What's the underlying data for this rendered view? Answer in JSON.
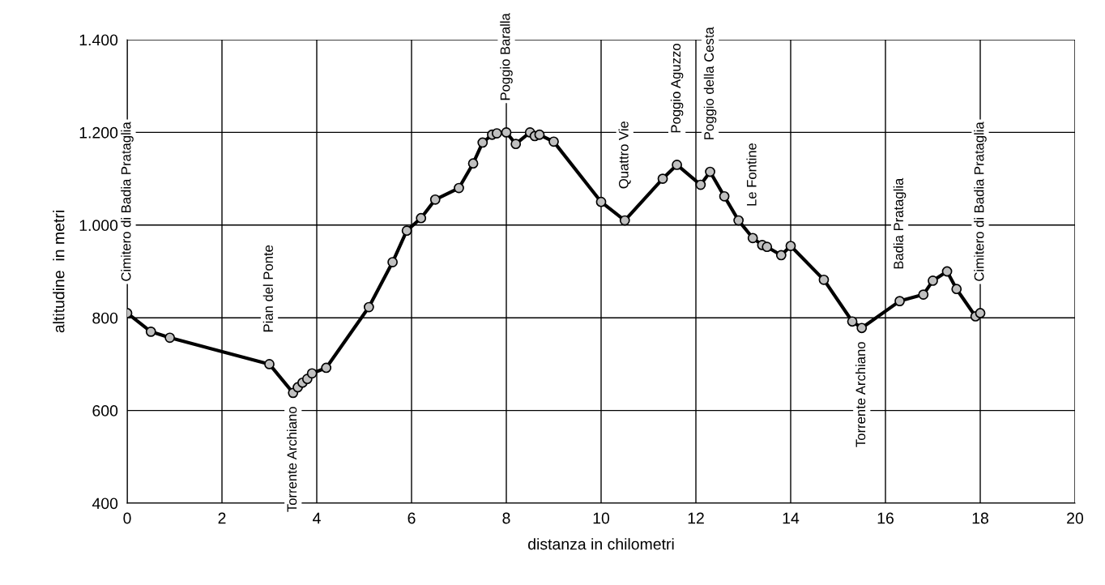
{
  "chart_data": {
    "type": "line",
    "xlabel": "distanza in chilometri",
    "ylabel": "altitudine  in metri",
    "x": [
      0,
      0.5,
      0.9,
      3,
      3.5,
      3.6,
      3.7,
      3.8,
      3.9,
      4.2,
      5.1,
      5.6,
      5.9,
      6.2,
      6.5,
      7,
      7.3,
      7.5,
      7.7,
      7.8,
      8,
      8.2,
      8.5,
      8.6,
      8.7,
      9,
      10,
      10.5,
      11.3,
      11.6,
      12.1,
      12.3,
      12.6,
      12.9,
      13.2,
      13.4,
      13.5,
      13.8,
      14,
      14.7,
      15.3,
      15.5,
      16.3,
      16.8,
      17,
      17.3,
      17.5,
      17.9,
      18
    ],
    "series": [
      {
        "color": "#000000",
        "values": [
          810,
          770,
          757,
          700,
          638,
          650,
          660,
          668,
          680,
          692,
          823,
          920,
          988,
          1015,
          1055,
          1080,
          1133,
          1178,
          1195,
          1198,
          1200,
          1175,
          1200,
          1192,
          1195,
          1180,
          1050,
          1010,
          1100,
          1130,
          1087,
          1115,
          1062,
          1010,
          972,
          957,
          953,
          935,
          955,
          882,
          792,
          778,
          836,
          850,
          880,
          900,
          862,
          803,
          810
        ]
      }
    ],
    "marker": "circle",
    "line_style": "solid",
    "grid": true,
    "legend": false,
    "xlim": [
      0,
      20
    ],
    "xticks": [
      0,
      2,
      4,
      6,
      8,
      10,
      12,
      14,
      16,
      18,
      20
    ],
    "ylim": [
      400,
      1400
    ],
    "yticks": [
      {
        "value": 400,
        "label": "400"
      },
      {
        "value": 600,
        "label": "600"
      },
      {
        "value": 800,
        "label": "800"
      },
      {
        "value": 1000,
        "label": "1.000"
      },
      {
        "value": 1200,
        "label": "1.200"
      },
      {
        "value": 1400,
        "label": "1.400"
      }
    ],
    "annotations": [
      {
        "text": "Cimitero di Badia Prataglia",
        "x": 0,
        "y": 810
      },
      {
        "text": "Pian del Ponte",
        "x": 3,
        "y": 700
      },
      {
        "text": "Torrente Archiano",
        "x": 3.5,
        "y": 638
      },
      {
        "text": "Poggio Baralla",
        "x": 8,
        "y": 1200
      },
      {
        "text": "Quattro Vie",
        "x": 10.5,
        "y": 1010
      },
      {
        "text": "Poggio Aguzzo",
        "x": 11.6,
        "y": 1130
      },
      {
        "text": "Poggio della Cesta",
        "x": 12.3,
        "y": 1115
      },
      {
        "text": "Le Fontine",
        "x": 13.2,
        "y": 972
      },
      {
        "text": "Torrente Archiano",
        "x": 15.5,
        "y": 778
      },
      {
        "text": "Badia Prataglia",
        "x": 16.3,
        "y": 836
      },
      {
        "text": "Cimitero di Badia Prataglia",
        "x": 18,
        "y": 810
      }
    ]
  }
}
